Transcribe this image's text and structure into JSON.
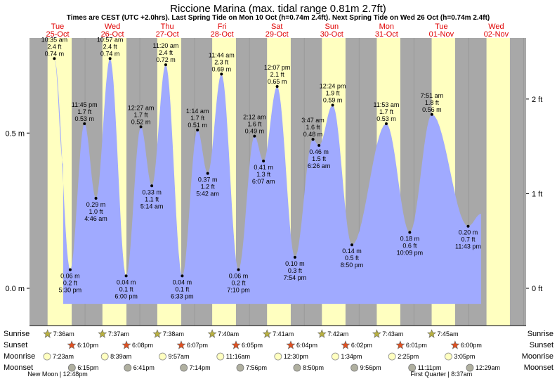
{
  "chart_data": {
    "type": "area",
    "title": "Riccione Marina (max. tidal range 0.81m 2.7ft)",
    "subtitle": "Times are CEST (UTC +2.0hrs). Last Spring Tide on Mon 10 Oct (h=0.74m 2.4ft). Next Spring Tide on Wed 26 Oct (h=0.74m 2.4ft)",
    "days": [
      {
        "dow": "Tue",
        "date": "25-Oct"
      },
      {
        "dow": "Wed",
        "date": "26-Oct"
      },
      {
        "dow": "Thu",
        "date": "27-Oct"
      },
      {
        "dow": "Fri",
        "date": "28-Oct"
      },
      {
        "dow": "Sat",
        "date": "29-Oct"
      },
      {
        "dow": "Sun",
        "date": "30-Oct"
      },
      {
        "dow": "Mon",
        "date": "31-Oct"
      },
      {
        "dow": "Tue",
        "date": "01-Nov"
      },
      {
        "dow": "Wed",
        "date": "02-Nov"
      }
    ],
    "y_ticks_m": [
      {
        "value": 0.0,
        "label": "0.0 m"
      },
      {
        "value": 0.5,
        "label": "0.5 m"
      }
    ],
    "y_ticks_ft": [
      {
        "value": 0,
        "label": "0 ft"
      },
      {
        "value": 1,
        "label": "1 ft"
      },
      {
        "value": 2,
        "label": "2 ft"
      }
    ],
    "ylim_m": [
      -0.06,
      0.88
    ],
    "colors": {
      "night": "#a8a8a8",
      "day": "#ffffc0",
      "tide": "#a0aaff",
      "night_stripe": "#999999"
    },
    "tides": [
      {
        "day": 0,
        "t": "10:35 am",
        "ft": "2.4 ft",
        "m": "0.74 m",
        "v": 0.74,
        "high": true
      },
      {
        "day": 0,
        "t": "5:30 pm",
        "ft": "0.2 ft",
        "m": "0.06 m",
        "v": 0.06,
        "high": false
      },
      {
        "day": 0,
        "t": "11:45 pm",
        "ft": "1.7 ft",
        "m": "0.53 m",
        "v": 0.53,
        "high": true
      },
      {
        "day": 1,
        "t": "4:46 am",
        "ft": "1.0 ft",
        "m": "0.29 m",
        "v": 0.29,
        "high": false
      },
      {
        "day": 1,
        "t": "10:57 am",
        "ft": "2.4 ft",
        "m": "0.74 m",
        "v": 0.74,
        "high": true
      },
      {
        "day": 1,
        "t": "6:00 pm",
        "ft": "0.1 ft",
        "m": "0.04 m",
        "v": 0.04,
        "high": false
      },
      {
        "day": 2,
        "t": "12:27 am",
        "ft": "1.7 ft",
        "m": "0.52 m",
        "v": 0.52,
        "high": true
      },
      {
        "day": 2,
        "t": "5:14 am",
        "ft": "1.1 ft",
        "m": "0.33 m",
        "v": 0.33,
        "high": false
      },
      {
        "day": 2,
        "t": "11:20 am",
        "ft": "2.4 ft",
        "m": "0.72 m",
        "v": 0.72,
        "high": true
      },
      {
        "day": 2,
        "t": "6:33 pm",
        "ft": "0.1 ft",
        "m": "0.04 m",
        "v": 0.04,
        "high": false
      },
      {
        "day": 3,
        "t": "1:14 am",
        "ft": "1.7 ft",
        "m": "0.51 m",
        "v": 0.51,
        "high": true
      },
      {
        "day": 3,
        "t": "5:42 am",
        "ft": "1.2 ft",
        "m": "0.37 m",
        "v": 0.37,
        "high": false
      },
      {
        "day": 3,
        "t": "11:44 am",
        "ft": "2.3 ft",
        "m": "0.69 m",
        "v": 0.69,
        "high": true
      },
      {
        "day": 3,
        "t": "7:10 pm",
        "ft": "0.2 ft",
        "m": "0.06 m",
        "v": 0.06,
        "high": false
      },
      {
        "day": 4,
        "t": "2:12 am",
        "ft": "1.6 ft",
        "m": "0.49 m",
        "v": 0.49,
        "high": true
      },
      {
        "day": 4,
        "t": "6:07 am",
        "ft": "1.3 ft",
        "m": "0.41 m",
        "v": 0.41,
        "high": false
      },
      {
        "day": 4,
        "t": "12:07 pm",
        "ft": "2.1 ft",
        "m": "0.65 m",
        "v": 0.65,
        "high": true
      },
      {
        "day": 4,
        "t": "7:54 pm",
        "ft": "0.3 ft",
        "m": "0.10 m",
        "v": 0.1,
        "high": false
      },
      {
        "day": 5,
        "t": "3:47 am",
        "ft": "1.6 ft",
        "m": "0.48 m",
        "v": 0.48,
        "high": true
      },
      {
        "day": 5,
        "t": "6:26 am",
        "ft": "1.5 ft",
        "m": "0.46 m",
        "v": 0.46,
        "high": false
      },
      {
        "day": 5,
        "t": "12:24 pm",
        "ft": "1.9 ft",
        "m": "0.59 m",
        "v": 0.59,
        "high": true
      },
      {
        "day": 5,
        "t": "8:50 pm",
        "ft": "0.5 ft",
        "m": "0.14 m",
        "v": 0.14,
        "high": false
      },
      {
        "day": 6,
        "t": "11:53 am",
        "ft": "1.7 ft",
        "m": "0.53 m",
        "v": 0.53,
        "high": true
      },
      {
        "day": 6,
        "t": "10:09 pm",
        "ft": "0.6 ft",
        "m": "0.18 m",
        "v": 0.18,
        "high": false
      },
      {
        "day": 7,
        "t": "7:51 am",
        "ft": "1.8 ft",
        "m": "0.56 m",
        "v": 0.56,
        "high": true
      },
      {
        "day": 7,
        "t": "11:43 pm",
        "ft": "0.7 ft",
        "m": "0.20 m",
        "v": 0.2,
        "high": false
      }
    ],
    "row_labels": [
      "Sunrise",
      "Sunset",
      "Moonrise",
      "Moonset"
    ],
    "sunrise": [
      "7:36am",
      "7:37am",
      "7:38am",
      "7:40am",
      "7:41am",
      "7:42am",
      "7:43am",
      "7:45am"
    ],
    "sunset": [
      "6:10pm",
      "6:08pm",
      "6:07pm",
      "6:05pm",
      "6:04pm",
      "6:02pm",
      "6:01pm",
      "6:00pm"
    ],
    "moonrise": [
      "7:23am",
      "8:39am",
      "9:57am",
      "11:16am",
      "12:30pm",
      "1:34pm",
      "2:25pm",
      "3:05pm"
    ],
    "moonset": [
      {
        "day": 0,
        "t": "6:15pm"
      },
      {
        "day": 1,
        "t": "6:41pm"
      },
      {
        "day": 2,
        "t": "7:14pm"
      },
      {
        "day": 3,
        "t": "7:56pm"
      },
      {
        "day": 4,
        "t": "8:50pm"
      },
      {
        "day": 5,
        "t": "9:56pm"
      },
      {
        "day": 6,
        "t": "11:11pm"
      },
      {
        "day": 8,
        "t": "12:29am"
      }
    ],
    "moon_phases": [
      {
        "label": "New Moon | 12:48pm",
        "day": 0
      },
      {
        "label": "First Quarter | 8:37am",
        "day": 7
      }
    ]
  }
}
